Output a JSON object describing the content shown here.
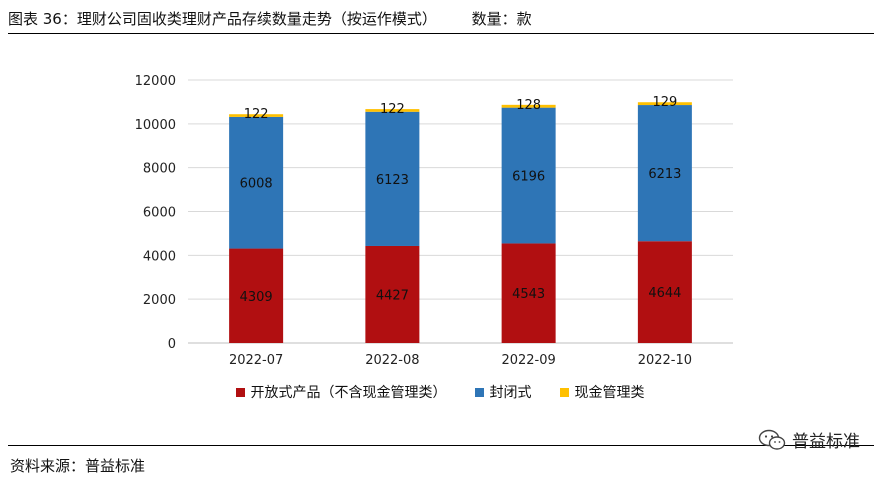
{
  "header": {
    "title": "图表 36：理财公司固收类理财产品存续数量走势（按运作模式）",
    "unit": "数量：款"
  },
  "footer": {
    "source": "资料来源：普益标准",
    "watermark": "普益标准"
  },
  "colors": {
    "open": "#b10f11",
    "closed": "#2e75b6",
    "cash": "#ffc000",
    "grid": "#d9d9d9",
    "axis": "#bfbfbf"
  },
  "icons": {
    "watermark_icon": "wechat-icon"
  },
  "chart_data": {
    "type": "bar",
    "stacked": true,
    "categories": [
      "2022-07",
      "2022-08",
      "2022-09",
      "2022-10"
    ],
    "series": [
      {
        "name": "开放式产品（不含现金管理类）",
        "values": [
          4309,
          4427,
          4543,
          4644
        ],
        "color": "#b10f11"
      },
      {
        "name": "封闭式",
        "values": [
          6008,
          6123,
          6196,
          6213
        ],
        "color": "#2e75b6"
      },
      {
        "name": "现金管理类",
        "values": [
          122,
          122,
          128,
          129
        ],
        "color": "#ffc000"
      }
    ],
    "ylim": [
      0,
      12000
    ],
    "yticks": [
      "0",
      "2000",
      "4000",
      "6000",
      "8000",
      "10000",
      "12000"
    ],
    "grid": true,
    "legend_position": "bottom"
  }
}
